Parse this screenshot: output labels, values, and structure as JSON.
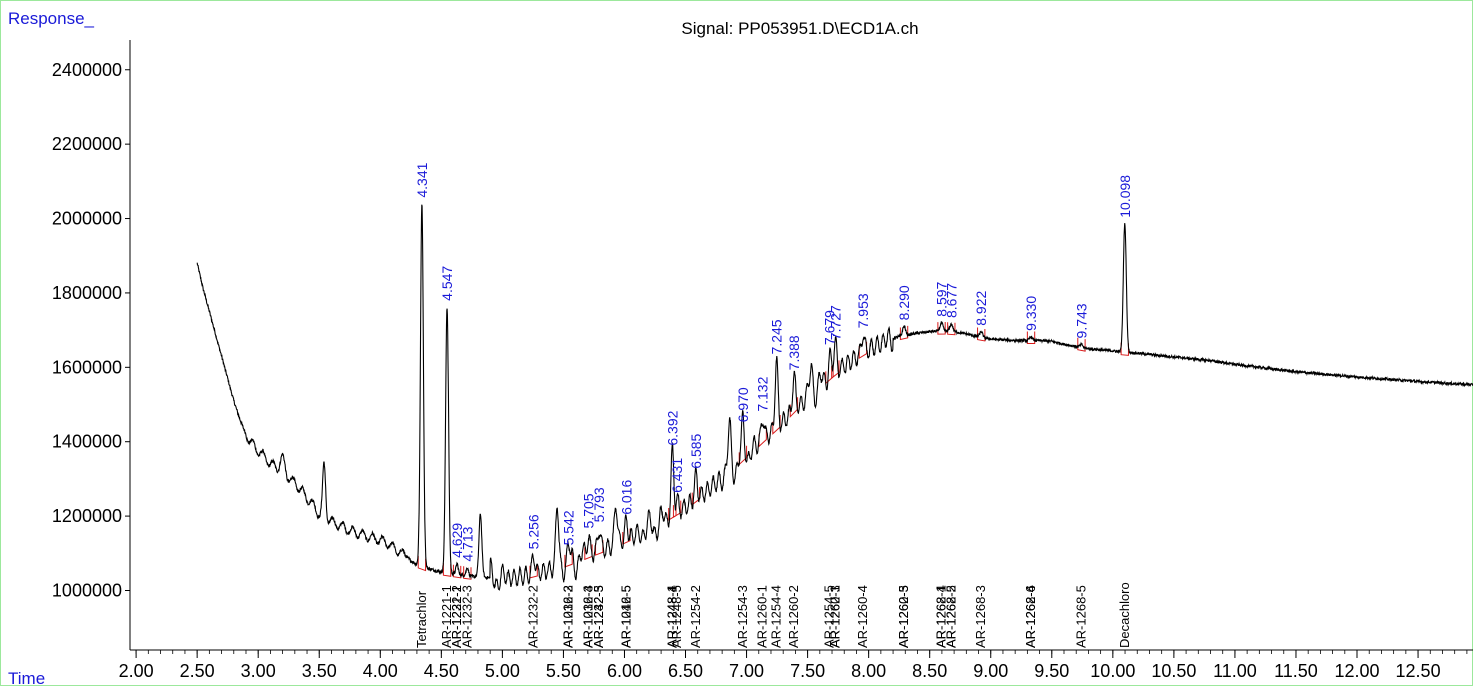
{
  "chart_data": {
    "type": "line",
    "title": "Signal: PP053951.D\\ECD1A.ch",
    "ylabel": "Response_",
    "xlabel": "Time",
    "xlim": [
      1.95,
      12.95
    ],
    "ylim": [
      840000,
      2480000
    ],
    "x_ticks": [
      "2.00",
      "2.50",
      "3.00",
      "3.50",
      "4.00",
      "4.50",
      "5.00",
      "5.50",
      "6.00",
      "6.50",
      "7.00",
      "7.50",
      "8.00",
      "8.50",
      "9.00",
      "9.50",
      "10.00",
      "10.50",
      "11.00",
      "11.50",
      "12.00",
      "12.50"
    ],
    "y_ticks": [
      "1000000",
      "1200000",
      "1400000",
      "1600000",
      "1800000",
      "2000000",
      "2200000",
      "2400000"
    ],
    "baseline_points": [
      [
        2.5,
        1880000
      ],
      [
        2.55,
        1810000
      ],
      [
        2.6,
        1750000
      ],
      [
        2.65,
        1690000
      ],
      [
        2.7,
        1630000
      ],
      [
        2.75,
        1570000
      ],
      [
        2.8,
        1510000
      ],
      [
        2.85,
        1460000
      ],
      [
        2.9,
        1420000
      ],
      [
        2.95,
        1395000
      ],
      [
        3.0,
        1375000
      ],
      [
        3.05,
        1360000
      ],
      [
        3.1,
        1340000
      ],
      [
        3.15,
        1330000
      ],
      [
        3.2,
        1315000
      ],
      [
        3.25,
        1300000
      ],
      [
        3.3,
        1290000
      ],
      [
        3.35,
        1270000
      ],
      [
        3.4,
        1250000
      ],
      [
        3.45,
        1230000
      ],
      [
        3.5,
        1205000
      ],
      [
        3.55,
        1195000
      ],
      [
        3.6,
        1185000
      ],
      [
        3.65,
        1178000
      ],
      [
        3.7,
        1170000
      ],
      [
        3.75,
        1162000
      ],
      [
        3.8,
        1156000
      ],
      [
        3.85,
        1150000
      ],
      [
        3.9,
        1145000
      ],
      [
        3.95,
        1140000
      ],
      [
        4.0,
        1135000
      ],
      [
        4.05,
        1128000
      ],
      [
        4.1,
        1118000
      ],
      [
        4.15,
        1105000
      ],
      [
        4.2,
        1095000
      ],
      [
        4.25,
        1080000
      ],
      [
        4.3,
        1070000
      ],
      [
        4.4,
        1058000
      ],
      [
        4.5,
        1050000
      ],
      [
        4.6,
        1045000
      ],
      [
        4.7,
        1040000
      ],
      [
        4.8,
        1036000
      ],
      [
        4.9,
        1034000
      ],
      [
        5.0,
        1033000
      ],
      [
        5.1,
        1035000
      ],
      [
        5.2,
        1040000
      ],
      [
        5.3,
        1048000
      ],
      [
        5.4,
        1058000
      ],
      [
        5.5,
        1070000
      ],
      [
        5.6,
        1082000
      ],
      [
        5.7,
        1095000
      ],
      [
        5.8,
        1108000
      ],
      [
        5.9,
        1120000
      ],
      [
        6.0,
        1135000
      ],
      [
        6.1,
        1150000
      ],
      [
        6.2,
        1168000
      ],
      [
        6.3,
        1185000
      ],
      [
        6.4,
        1205000
      ],
      [
        6.5,
        1225000
      ],
      [
        6.6,
        1250000
      ],
      [
        6.7,
        1275000
      ],
      [
        6.8,
        1305000
      ],
      [
        6.9,
        1335000
      ],
      [
        7.0,
        1365000
      ],
      [
        7.1,
        1395000
      ],
      [
        7.2,
        1425000
      ],
      [
        7.3,
        1455000
      ],
      [
        7.4,
        1490000
      ],
      [
        7.5,
        1520000
      ],
      [
        7.6,
        1550000
      ],
      [
        7.7,
        1580000
      ],
      [
        7.8,
        1605000
      ],
      [
        7.9,
        1628000
      ],
      [
        8.0,
        1648000
      ],
      [
        8.1,
        1665000
      ],
      [
        8.2,
        1678000
      ],
      [
        8.3,
        1686000
      ],
      [
        8.4,
        1692000
      ],
      [
        8.5,
        1696000
      ],
      [
        8.6,
        1698000
      ],
      [
        8.7,
        1696000
      ],
      [
        8.8,
        1690000
      ],
      [
        8.9,
        1682000
      ],
      [
        9.0,
        1676000
      ],
      [
        9.2,
        1672000
      ],
      [
        9.4,
        1672000
      ],
      [
        9.5,
        1670000
      ],
      [
        9.6,
        1662000
      ],
      [
        9.8,
        1650000
      ],
      [
        10.0,
        1644000
      ],
      [
        10.2,
        1638000
      ],
      [
        10.5,
        1628000
      ],
      [
        10.8,
        1618000
      ],
      [
        11.0,
        1608000
      ],
      [
        11.5,
        1588000
      ],
      [
        12.0,
        1574000
      ],
      [
        12.5,
        1562000
      ],
      [
        12.95,
        1553000
      ]
    ],
    "peaks": [
      {
        "rt": 3.2,
        "height": 40000,
        "width": 0.02
      },
      {
        "rt": 3.54,
        "height": 140000,
        "width": 0.012
      },
      {
        "rt": 4.341,
        "height": 975000,
        "width": 0.012
      },
      {
        "rt": 4.547,
        "height": 715000,
        "width": 0.012
      },
      {
        "rt": 4.629,
        "height": 28000,
        "width": 0.01
      },
      {
        "rt": 4.713,
        "height": 22000,
        "width": 0.01
      },
      {
        "rt": 4.82,
        "height": 170000,
        "width": 0.012
      },
      {
        "rt": 5.256,
        "height": 50000,
        "width": 0.012
      },
      {
        "rt": 5.45,
        "height": 160000,
        "width": 0.012
      },
      {
        "rt": 5.542,
        "height": 30000,
        "width": 0.01
      },
      {
        "rt": 5.705,
        "height": 55000,
        "width": 0.012
      },
      {
        "rt": 5.793,
        "height": 60000,
        "width": 0.012
      },
      {
        "rt": 5.93,
        "height": 110000,
        "width": 0.012
      },
      {
        "rt": 6.016,
        "height": 50000,
        "width": 0.012
      },
      {
        "rt": 6.392,
        "height": 170000,
        "width": 0.012
      },
      {
        "rt": 6.431,
        "height": 35000,
        "width": 0.01
      },
      {
        "rt": 6.585,
        "height": 65000,
        "width": 0.012
      },
      {
        "rt": 6.86,
        "height": 110000,
        "width": 0.012
      },
      {
        "rt": 6.97,
        "height": 80000,
        "width": 0.012
      },
      {
        "rt": 7.132,
        "height": 60000,
        "width": 0.012
      },
      {
        "rt": 7.245,
        "height": 180000,
        "width": 0.012
      },
      {
        "rt": 7.388,
        "height": 90000,
        "width": 0.012
      },
      {
        "rt": 7.53,
        "height": 80000,
        "width": 0.012
      },
      {
        "rt": 7.679,
        "height": 70000,
        "width": 0.012
      },
      {
        "rt": 7.727,
        "height": 70000,
        "width": 0.012
      },
      {
        "rt": 7.953,
        "height": 50000,
        "width": 0.012
      },
      {
        "rt": 8.29,
        "height": 25000,
        "width": 0.012
      },
      {
        "rt": 8.597,
        "height": 22000,
        "width": 0.012
      },
      {
        "rt": 8.677,
        "height": 20000,
        "width": 0.012
      },
      {
        "rt": 8.922,
        "height": 15000,
        "width": 0.012
      },
      {
        "rt": 9.33,
        "height": 10000,
        "width": 0.012
      },
      {
        "rt": 9.743,
        "height": 8000,
        "width": 0.012
      },
      {
        "rt": 10.098,
        "height": 345000,
        "width": 0.012
      }
    ],
    "peak_labels": [
      {
        "rt": 4.341,
        "label": "4.341"
      },
      {
        "rt": 4.547,
        "label": "4.547"
      },
      {
        "rt": 4.629,
        "label": "4.629"
      },
      {
        "rt": 4.713,
        "label": "4.713"
      },
      {
        "rt": 5.256,
        "label": "5.256"
      },
      {
        "rt": 5.542,
        "label": "5.542"
      },
      {
        "rt": 5.705,
        "label": "5.705"
      },
      {
        "rt": 5.793,
        "label": "5.793"
      },
      {
        "rt": 6.016,
        "label": "6.016"
      },
      {
        "rt": 6.392,
        "label": "6.392"
      },
      {
        "rt": 6.431,
        "label": "6.431"
      },
      {
        "rt": 6.585,
        "label": "6.585"
      },
      {
        "rt": 6.97,
        "label": "6.970"
      },
      {
        "rt": 7.132,
        "label": "7.132"
      },
      {
        "rt": 7.245,
        "label": "7.245"
      },
      {
        "rt": 7.388,
        "label": "7.388"
      },
      {
        "rt": 7.679,
        "label": "7.679"
      },
      {
        "rt": 7.727,
        "label": "7.727"
      },
      {
        "rt": 7.953,
        "label": "7.953"
      },
      {
        "rt": 8.29,
        "label": "8.290"
      },
      {
        "rt": 8.597,
        "label": "8.597"
      },
      {
        "rt": 8.677,
        "label": "8.677"
      },
      {
        "rt": 8.922,
        "label": "8.922"
      },
      {
        "rt": 9.33,
        "label": "9.330"
      },
      {
        "rt": 9.743,
        "label": "9.743"
      },
      {
        "rt": 10.098,
        "label": "10.098"
      }
    ],
    "compound_labels": [
      {
        "rt": 4.341,
        "label": "Tetrachlor"
      },
      {
        "rt": 4.547,
        "label": "AR-1221-1"
      },
      {
        "rt": 4.629,
        "label": "AR-1221-2"
      },
      {
        "rt": 4.629,
        "label": "AR-1232-1"
      },
      {
        "rt": 4.713,
        "label": "AR-1232-3"
      },
      {
        "rt": 5.256,
        "label": "AR-1232-2"
      },
      {
        "rt": 5.542,
        "label": "AR-1232-3"
      },
      {
        "rt": 5.542,
        "label": "AR-1016-2"
      },
      {
        "rt": 5.705,
        "label": "AR-1232-4"
      },
      {
        "rt": 5.705,
        "label": "AR-1016-3"
      },
      {
        "rt": 5.793,
        "label": "AR-1232-5"
      },
      {
        "rt": 5.793,
        "label": "AR-1242-3"
      },
      {
        "rt": 6.016,
        "label": "AR-1016-5"
      },
      {
        "rt": 6.016,
        "label": "AR-1242-5"
      },
      {
        "rt": 6.392,
        "label": "AR-1248-4"
      },
      {
        "rt": 6.392,
        "label": "AR-1248-1"
      },
      {
        "rt": 6.431,
        "label": "AR-1248-5"
      },
      {
        "rt": 6.585,
        "label": "AR-1254-2"
      },
      {
        "rt": 6.97,
        "label": "AR-1254-3"
      },
      {
        "rt": 7.132,
        "label": "AR-1260-1"
      },
      {
        "rt": 7.245,
        "label": "AR-1254-4"
      },
      {
        "rt": 7.388,
        "label": "AR-1260-2"
      },
      {
        "rt": 7.679,
        "label": "AR-1254-5"
      },
      {
        "rt": 7.727,
        "label": "AR-1260-3"
      },
      {
        "rt": 7.727,
        "label": "AR-1262-1"
      },
      {
        "rt": 7.953,
        "label": "AR-1260-4"
      },
      {
        "rt": 8.29,
        "label": "AR-1260-5"
      },
      {
        "rt": 8.29,
        "label": "AR-1262-3"
      },
      {
        "rt": 8.597,
        "label": "AR-1268-1"
      },
      {
        "rt": 8.597,
        "label": "AR-1262-4"
      },
      {
        "rt": 8.677,
        "label": "AR-1268-2"
      },
      {
        "rt": 8.677,
        "label": "AR-1262-5"
      },
      {
        "rt": 8.922,
        "label": "AR-1268-3"
      },
      {
        "rt": 9.33,
        "label": "AR-1268-4"
      },
      {
        "rt": 9.33,
        "label": "AR-1262-6"
      },
      {
        "rt": 9.743,
        "label": "AR-1268-5"
      },
      {
        "rt": 10.098,
        "label": "Decachloro"
      }
    ],
    "colors": {
      "trace": "#000000",
      "labels": "#1a1ad8",
      "integration": "#d81a1a",
      "frame": "#9ce89c"
    }
  }
}
